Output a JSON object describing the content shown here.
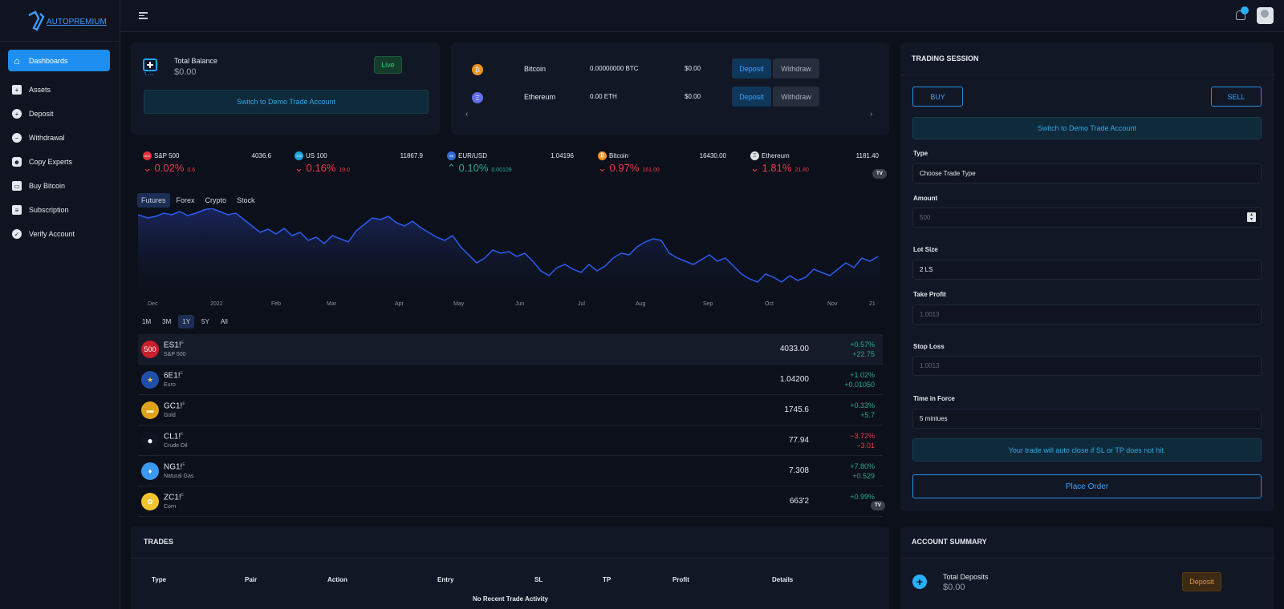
{
  "brand": {
    "name": "AUTOPREMIUM"
  },
  "sidebar": {
    "items": [
      {
        "label": "Dashboards",
        "icon": "home-icon"
      },
      {
        "label": "Assets",
        "icon": "assets-icon"
      },
      {
        "label": "Deposit",
        "icon": "plus-circle-icon"
      },
      {
        "label": "Withdrawal",
        "icon": "minus-circle-icon"
      },
      {
        "label": "Copy Experts",
        "icon": "users-icon"
      },
      {
        "label": "Buy Bitcoin",
        "icon": "wallet-icon"
      },
      {
        "label": "Subscription",
        "icon": "server-icon"
      },
      {
        "label": "Verify Account",
        "icon": "check-circle-icon"
      }
    ]
  },
  "balance": {
    "title": "Total Balance",
    "amount": "$0.00",
    "live": "Live",
    "switch": "Switch to Demo Trade Account"
  },
  "wallets": [
    {
      "name": "Bitcoin",
      "amount": "0.00000000 BTC",
      "usd": "$0.00",
      "deposit": "Deposit",
      "withdraw": "Withdraw"
    },
    {
      "name": "Ethereum",
      "amount": "0.00 ETH",
      "usd": "$0.00",
      "deposit": "Deposit",
      "withdraw": "Withdraw"
    }
  ],
  "ticker": [
    {
      "name": "S&P 500",
      "icon": "500",
      "price": "4036.6",
      "change": "0.02%",
      "delta": "0.6",
      "dir": "down",
      "color": "#e0303a"
    },
    {
      "name": "US 100",
      "icon": "100",
      "price": "11867.9",
      "change": "0.16%",
      "delta": "19.0",
      "dir": "down",
      "color": "#1ca3d9"
    },
    {
      "name": "EUR/USD",
      "icon": "€$",
      "price": "1.04196",
      "change": "0.10%",
      "delta": "0.00109",
      "dir": "up",
      "color": "#2f6bd8"
    },
    {
      "name": "Bitcoin",
      "icon": "₿",
      "price": "16430.00",
      "change": "0.97%",
      "delta": "161.00",
      "dir": "down",
      "color": "#f0921c"
    },
    {
      "name": "Ethereum",
      "icon": "Ξ",
      "price": "1181.40",
      "change": "1.81%",
      "delta": "21.80",
      "dir": "down",
      "color": "#dfe3ea"
    }
  ],
  "chart": {
    "tabs": [
      "Futures",
      "Forex",
      "Crypto",
      "Stock"
    ],
    "months": [
      "Dec",
      "2022",
      "Feb",
      "Mar",
      "Apr",
      "May",
      "Jun",
      "Jul",
      "Aug",
      "Sep",
      "Oct",
      "Nov",
      "21"
    ],
    "ranges": [
      "1M",
      "3M",
      "1Y",
      "5Y",
      "All"
    ]
  },
  "futures": [
    {
      "sym": "ES1!",
      "sub": "S&P 500",
      "val": "4033.00",
      "p1": "+0.57%",
      "p2": "+22.75",
      "dir": "up",
      "badge": "500",
      "color": "#c8202d"
    },
    {
      "sym": "6E1!",
      "sub": "Euro",
      "val": "1.04200",
      "p1": "+1.02%",
      "p2": "+0.01050",
      "dir": "up",
      "badge": "★",
      "color": "#1f4fa8"
    },
    {
      "sym": "GC1!",
      "sub": "Gold",
      "val": "1745.6",
      "p1": "+0.33%",
      "p2": "+5.7",
      "dir": "up",
      "badge": "▬",
      "color": "#e0a21a"
    },
    {
      "sym": "CL1!",
      "sub": "Crude Oil",
      "val": "77.94",
      "p1": "−3.72%",
      "p2": "−3.01",
      "dir": "down",
      "badge": "●",
      "color": "#0f1420"
    },
    {
      "sym": "NG1!",
      "sub": "Natural Gas",
      "val": "7.308",
      "p1": "+7.80%",
      "p2": "+0.529",
      "dir": "up",
      "badge": "♦",
      "color": "#3a9af0"
    },
    {
      "sym": "ZC1!",
      "sub": "Corn",
      "val": "663'2",
      "p1": "+0.99%",
      "p2": "+",
      "dir": "up",
      "badge": "✿",
      "color": "#f2c230"
    }
  ],
  "futures_sup": "E",
  "tv": "TV",
  "trading": {
    "title": "TRADING SESSION",
    "buy": "BUY",
    "sell": "SELL",
    "switch": "Switch to Demo Trade Account",
    "type_label": "Type",
    "type_value": "Choose Trade Type",
    "amount_label": "Amount",
    "amount_placeholder": "500",
    "lot_label": "Lot Size",
    "lot_value": "2 LS",
    "tp_label": "Take Profit",
    "tp_placeholder": "1.0013",
    "sl_label": "Stop Loss",
    "sl_placeholder": "1.0013",
    "tif_label": "Time in Force",
    "tif_value": "5 mintues",
    "notice": "Your trade will auto close if SL or TP does not hit.",
    "place": "Place Order"
  },
  "trades": {
    "title": "TRADES",
    "headers": [
      "Type",
      "Pair",
      "Action",
      "Entry",
      "SL",
      "TP",
      "Profit",
      "Details"
    ],
    "empty": "No Recent Trade Activity"
  },
  "summary": {
    "title": "ACCOUNT SUMMARY",
    "deposits_label": "Total Deposits",
    "deposits_amount": "$0.00",
    "deposit_btn": "Deposit"
  }
}
